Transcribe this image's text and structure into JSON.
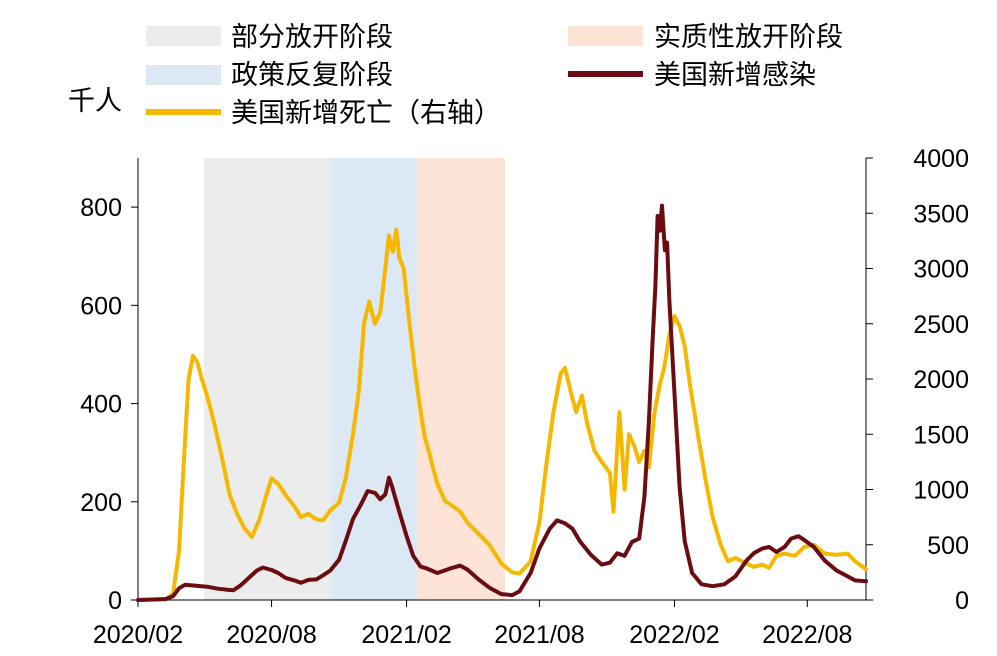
{
  "chart_data": {
    "type": "line",
    "unit_label": "千人",
    "legend": {
      "partial_open": "部分放开阶段",
      "policy_reversal": "政策反复阶段",
      "deaths": "美国新增死亡（右轴）",
      "substantive_open": "实质性放开阶段",
      "cases": "美国新增感染"
    },
    "colors": {
      "partial_open": "#ececec",
      "policy_reversal": "#dde8f5",
      "substantive_open": "#fde4d6",
      "cases": "#6b0d10",
      "deaths": "#f5b800"
    },
    "x_ticks": [
      "2020/02",
      "2020/08",
      "2021/02",
      "2021/08",
      "2022/02",
      "2022/08"
    ],
    "y_left": {
      "ticks": [
        "0",
        "200",
        "400",
        "600",
        "800"
      ],
      "ylim": [
        0,
        900
      ]
    },
    "y_right": {
      "ticks": [
        "0",
        "500",
        "1000",
        "1500",
        "2000",
        "2500",
        "3000",
        "3500",
        "4000"
      ],
      "ylim": [
        0,
        4000
      ]
    },
    "xlim": [
      "2020-02-01",
      "2022-10-20"
    ],
    "shaded_periods": [
      {
        "key": "partial_open",
        "start": "2020-05-01",
        "end": "2020-10-20"
      },
      {
        "key": "policy_reversal",
        "start": "2020-10-20",
        "end": "2021-02-15"
      },
      {
        "key": "substantive_open",
        "start": "2021-02-15",
        "end": "2021-06-15"
      }
    ],
    "series": [
      {
        "name": "美国新增感染",
        "axis": "left",
        "points": [
          [
            "2020-02-01",
            0
          ],
          [
            "2020-03-10",
            2
          ],
          [
            "2020-03-20",
            8
          ],
          [
            "2020-03-28",
            24
          ],
          [
            "2020-04-05",
            31
          ],
          [
            "2020-04-20",
            29
          ],
          [
            "2020-05-05",
            27
          ],
          [
            "2020-05-20",
            23
          ],
          [
            "2020-06-01",
            21
          ],
          [
            "2020-06-10",
            20
          ],
          [
            "2020-06-20",
            30
          ],
          [
            "2020-07-01",
            45
          ],
          [
            "2020-07-12",
            60
          ],
          [
            "2020-07-20",
            66
          ],
          [
            "2020-08-01",
            61
          ],
          [
            "2020-08-10",
            55
          ],
          [
            "2020-08-20",
            45
          ],
          [
            "2020-09-01",
            40
          ],
          [
            "2020-09-10",
            35
          ],
          [
            "2020-09-20",
            41
          ],
          [
            "2020-10-01",
            42
          ],
          [
            "2020-10-10",
            50
          ],
          [
            "2020-10-20",
            60
          ],
          [
            "2020-11-01",
            82
          ],
          [
            "2020-11-10",
            120
          ],
          [
            "2020-11-20",
            165
          ],
          [
            "2020-12-01",
            195
          ],
          [
            "2020-12-10",
            222
          ],
          [
            "2020-12-20",
            218
          ],
          [
            "2020-12-27",
            205
          ],
          [
            "2021-01-03",
            215
          ],
          [
            "2021-01-08",
            249
          ],
          [
            "2021-01-12",
            232
          ],
          [
            "2021-01-20",
            190
          ],
          [
            "2021-02-01",
            130
          ],
          [
            "2021-02-10",
            90
          ],
          [
            "2021-02-20",
            68
          ],
          [
            "2021-03-01",
            64
          ],
          [
            "2021-03-15",
            55
          ],
          [
            "2021-04-01",
            64
          ],
          [
            "2021-04-15",
            70
          ],
          [
            "2021-04-25",
            62
          ],
          [
            "2021-05-10",
            42
          ],
          [
            "2021-05-25",
            25
          ],
          [
            "2021-06-10",
            12
          ],
          [
            "2021-06-25",
            10
          ],
          [
            "2021-07-05",
            18
          ],
          [
            "2021-07-20",
            55
          ],
          [
            "2021-08-01",
            105
          ],
          [
            "2021-08-15",
            145
          ],
          [
            "2021-08-25",
            162
          ],
          [
            "2021-09-05",
            156
          ],
          [
            "2021-09-15",
            145
          ],
          [
            "2021-09-25",
            120
          ],
          [
            "2021-10-10",
            92
          ],
          [
            "2021-10-25",
            72
          ],
          [
            "2021-11-05",
            76
          ],
          [
            "2021-11-15",
            95
          ],
          [
            "2021-11-25",
            90
          ],
          [
            "2021-12-05",
            118
          ],
          [
            "2021-12-15",
            125
          ],
          [
            "2021-12-22",
            210
          ],
          [
            "2021-12-28",
            360
          ],
          [
            "2022-01-02",
            520
          ],
          [
            "2022-01-06",
            640
          ],
          [
            "2022-01-09",
            782
          ],
          [
            "2022-01-12",
            752
          ],
          [
            "2022-01-15",
            803
          ],
          [
            "2022-01-19",
            712
          ],
          [
            "2022-01-22",
            728
          ],
          [
            "2022-01-25",
            612
          ],
          [
            "2022-02-01",
            420
          ],
          [
            "2022-02-08",
            230
          ],
          [
            "2022-02-15",
            120
          ],
          [
            "2022-02-25",
            55
          ],
          [
            "2022-03-10",
            32
          ],
          [
            "2022-03-25",
            28
          ],
          [
            "2022-04-10",
            32
          ],
          [
            "2022-04-25",
            48
          ],
          [
            "2022-05-10",
            80
          ],
          [
            "2022-05-20",
            95
          ],
          [
            "2022-06-01",
            105
          ],
          [
            "2022-06-10",
            108
          ],
          [
            "2022-06-20",
            98
          ],
          [
            "2022-07-01",
            108
          ],
          [
            "2022-07-10",
            125
          ],
          [
            "2022-07-20",
            130
          ],
          [
            "2022-07-28",
            122
          ],
          [
            "2022-08-10",
            108
          ],
          [
            "2022-08-25",
            80
          ],
          [
            "2022-09-10",
            60
          ],
          [
            "2022-09-25",
            48
          ],
          [
            "2022-10-05",
            40
          ],
          [
            "2022-10-20",
            38
          ]
        ]
      },
      {
        "name": "美国新增死亡（右轴）",
        "axis": "right",
        "points": [
          [
            "2020-02-01",
            0
          ],
          [
            "2020-03-10",
            5
          ],
          [
            "2020-03-20",
            60
          ],
          [
            "2020-03-28",
            450
          ],
          [
            "2020-04-03",
            1200
          ],
          [
            "2020-04-10",
            2000
          ],
          [
            "2020-04-16",
            2210
          ],
          [
            "2020-04-22",
            2150
          ],
          [
            "2020-04-28",
            2000
          ],
          [
            "2020-05-05",
            1850
          ],
          [
            "2020-05-15",
            1600
          ],
          [
            "2020-05-25",
            1300
          ],
          [
            "2020-06-05",
            950
          ],
          [
            "2020-06-15",
            780
          ],
          [
            "2020-06-25",
            650
          ],
          [
            "2020-07-05",
            570
          ],
          [
            "2020-07-15",
            720
          ],
          [
            "2020-07-25",
            950
          ],
          [
            "2020-08-01",
            1100
          ],
          [
            "2020-08-10",
            1050
          ],
          [
            "2020-08-20",
            950
          ],
          [
            "2020-09-01",
            850
          ],
          [
            "2020-09-10",
            750
          ],
          [
            "2020-09-20",
            780
          ],
          [
            "2020-10-01",
            730
          ],
          [
            "2020-10-10",
            720
          ],
          [
            "2020-10-20",
            810
          ],
          [
            "2020-11-01",
            880
          ],
          [
            "2020-11-10",
            1100
          ],
          [
            "2020-11-20",
            1500
          ],
          [
            "2020-11-28",
            1900
          ],
          [
            "2020-12-05",
            2500
          ],
          [
            "2020-12-12",
            2700
          ],
          [
            "2020-12-20",
            2500
          ],
          [
            "2020-12-27",
            2600
          ],
          [
            "2021-01-03",
            3000
          ],
          [
            "2021-01-08",
            3300
          ],
          [
            "2021-01-13",
            3150
          ],
          [
            "2021-01-18",
            3350
          ],
          [
            "2021-01-22",
            3100
          ],
          [
            "2021-01-28",
            3000
          ],
          [
            "2021-02-05",
            2500
          ],
          [
            "2021-02-12",
            2100
          ],
          [
            "2021-02-18",
            1800
          ],
          [
            "2021-02-25",
            1500
          ],
          [
            "2021-03-05",
            1300
          ],
          [
            "2021-03-15",
            1050
          ],
          [
            "2021-03-25",
            900
          ],
          [
            "2021-04-05",
            850
          ],
          [
            "2021-04-15",
            800
          ],
          [
            "2021-04-25",
            700
          ],
          [
            "2021-05-10",
            600
          ],
          [
            "2021-05-25",
            500
          ],
          [
            "2021-06-10",
            330
          ],
          [
            "2021-06-25",
            250
          ],
          [
            "2021-07-05",
            240
          ],
          [
            "2021-07-20",
            350
          ],
          [
            "2021-08-01",
            700
          ],
          [
            "2021-08-10",
            1200
          ],
          [
            "2021-08-20",
            1700
          ],
          [
            "2021-08-30",
            2050
          ],
          [
            "2021-09-05",
            2100
          ],
          [
            "2021-09-12",
            1900
          ],
          [
            "2021-09-20",
            1700
          ],
          [
            "2021-09-28",
            1850
          ],
          [
            "2021-10-05",
            1600
          ],
          [
            "2021-10-15",
            1350
          ],
          [
            "2021-10-25",
            1250
          ],
          [
            "2021-11-05",
            1150
          ],
          [
            "2021-11-10",
            800
          ],
          [
            "2021-11-18",
            1700
          ],
          [
            "2021-11-25",
            1000
          ],
          [
            "2021-12-01",
            1500
          ],
          [
            "2021-12-08",
            1400
          ],
          [
            "2021-12-15",
            1250
          ],
          [
            "2021-12-22",
            1350
          ],
          [
            "2021-12-28",
            1200
          ],
          [
            "2022-01-05",
            1700
          ],
          [
            "2022-01-12",
            1950
          ],
          [
            "2022-01-18",
            2100
          ],
          [
            "2022-01-25",
            2400
          ],
          [
            "2022-02-01",
            2570
          ],
          [
            "2022-02-08",
            2480
          ],
          [
            "2022-02-15",
            2300
          ],
          [
            "2022-02-22",
            1950
          ],
          [
            "2022-03-05",
            1500
          ],
          [
            "2022-03-15",
            1100
          ],
          [
            "2022-03-25",
            750
          ],
          [
            "2022-04-05",
            500
          ],
          [
            "2022-04-15",
            350
          ],
          [
            "2022-04-25",
            380
          ],
          [
            "2022-05-10",
            330
          ],
          [
            "2022-05-20",
            300
          ],
          [
            "2022-06-01",
            320
          ],
          [
            "2022-06-10",
            290
          ],
          [
            "2022-06-20",
            400
          ],
          [
            "2022-07-01",
            420
          ],
          [
            "2022-07-15",
            400
          ],
          [
            "2022-07-28",
            480
          ],
          [
            "2022-08-10",
            500
          ],
          [
            "2022-08-25",
            420
          ],
          [
            "2022-09-10",
            410
          ],
          [
            "2022-09-25",
            420
          ],
          [
            "2022-10-05",
            350
          ],
          [
            "2022-10-20",
            280
          ]
        ]
      }
    ]
  }
}
